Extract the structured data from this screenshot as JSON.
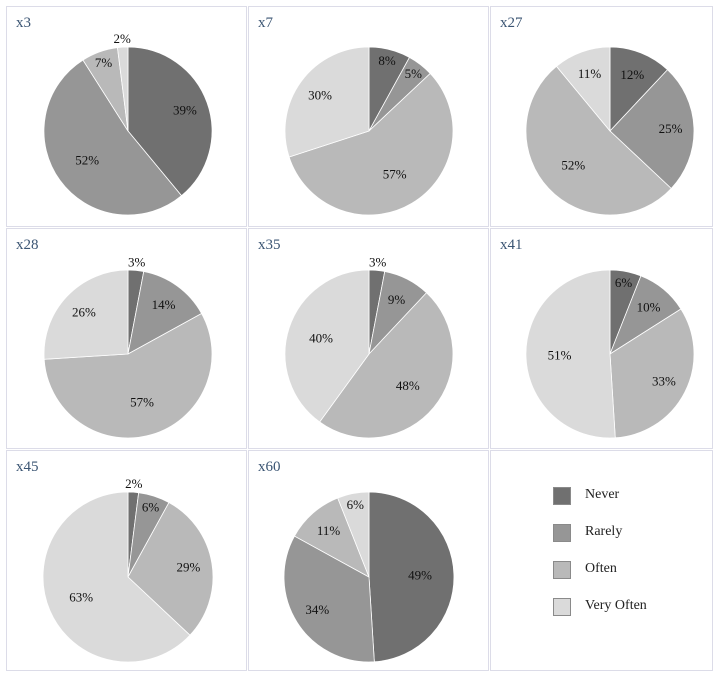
{
  "colors": {
    "Never": "#707070",
    "Rarely": "#969696",
    "Often": "#b9b9b9",
    "Very Often": "#dadada",
    "title": "#3b5573",
    "border": "#dcdce8"
  },
  "legend": [
    "Never",
    "Rarely",
    "Often",
    "Very Often"
  ],
  "chart_data": [
    {
      "type": "pie",
      "title": "x3",
      "categories": [
        "Never",
        "Rarely",
        "Often",
        "Very Often"
      ],
      "values": [
        39,
        52,
        7,
        2
      ]
    },
    {
      "type": "pie",
      "title": "x7",
      "categories": [
        "Never",
        "Rarely",
        "Often",
        "Very Often"
      ],
      "values": [
        8,
        5,
        57,
        30
      ]
    },
    {
      "type": "pie",
      "title": "x27",
      "categories": [
        "Never",
        "Rarely",
        "Often",
        "Very Often"
      ],
      "values": [
        12,
        25,
        52,
        11
      ]
    },
    {
      "type": "pie",
      "title": "x28",
      "categories": [
        "Never",
        "Rarely",
        "Often",
        "Very Often"
      ],
      "values": [
        3,
        14,
        57,
        26
      ]
    },
    {
      "type": "pie",
      "title": "x35",
      "categories": [
        "Never",
        "Rarely",
        "Often",
        "Very Often"
      ],
      "values": [
        3,
        9,
        48,
        40
      ]
    },
    {
      "type": "pie",
      "title": "x41",
      "categories": [
        "Never",
        "Rarely",
        "Often",
        "Very Often"
      ],
      "values": [
        6,
        10,
        33,
        51
      ]
    },
    {
      "type": "pie",
      "title": "x45",
      "categories": [
        "Never",
        "Rarely",
        "Often",
        "Very Often"
      ],
      "values": [
        2,
        6,
        29,
        63
      ]
    },
    {
      "type": "pie",
      "title": "x60",
      "categories": [
        "Never",
        "Rarely",
        "Often",
        "Very Often"
      ],
      "values": [
        49,
        34,
        11,
        6
      ]
    }
  ]
}
